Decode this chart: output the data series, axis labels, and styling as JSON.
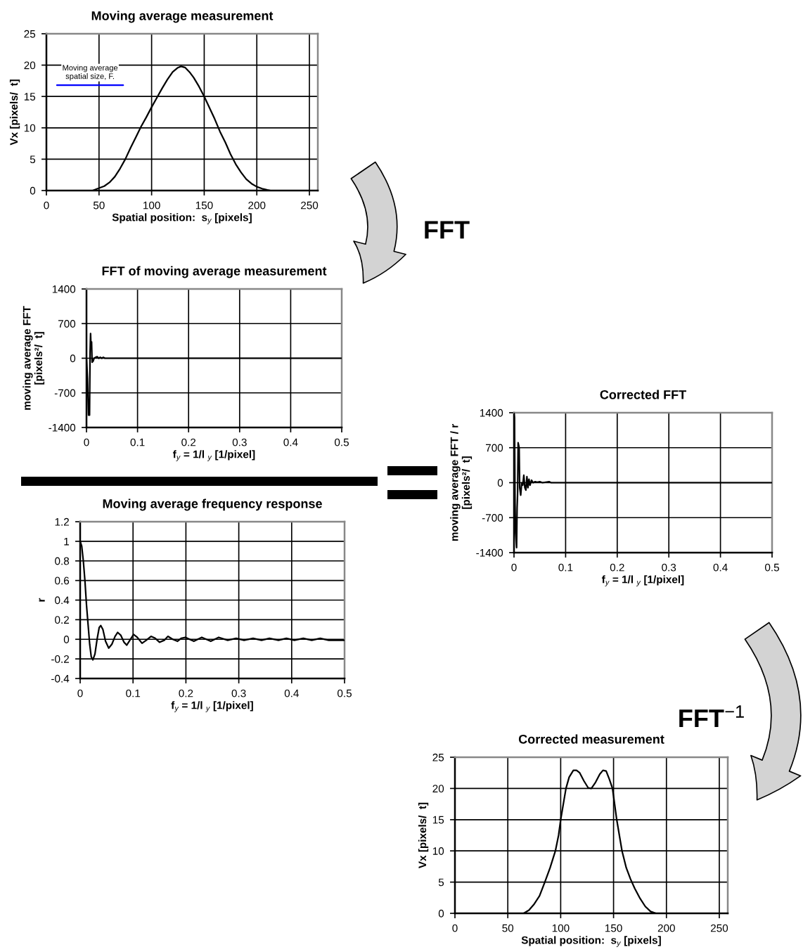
{
  "chart_data": [
    {
      "type": "line",
      "title": "Moving average measurement",
      "xlabel": "Spatial position:  s$_{y}$ [pixels]",
      "ylabel": "Vx [pixels/  t]",
      "xlim": [
        0,
        258
      ],
      "xticks": [
        0,
        50,
        100,
        150,
        200,
        250
      ],
      "ylim": [
        0,
        25
      ],
      "yticks": [
        0,
        5,
        10,
        15,
        20,
        25
      ],
      "grid": true,
      "series": [
        {
          "color": "#000000",
          "x": [
            44,
            50,
            55,
            60,
            65,
            70,
            75,
            80,
            85,
            90,
            95,
            100,
            105,
            110,
            115,
            120,
            125,
            128,
            132,
            136,
            140,
            145,
            150,
            155,
            160,
            165,
            170,
            175,
            180,
            185,
            190,
            195,
            200,
            205,
            210,
            213
          ],
          "values": [
            0,
            0.4,
            0.7,
            1.3,
            2.2,
            3.5,
            5.0,
            6.8,
            8.5,
            10.2,
            11.7,
            13.3,
            14.8,
            16.3,
            17.7,
            18.9,
            19.6,
            19.8,
            19.6,
            18.9,
            18.0,
            16.6,
            15.0,
            13.2,
            11.4,
            9.4,
            7.7,
            5.8,
            4.2,
            2.9,
            1.8,
            1.1,
            0.6,
            0.3,
            0.1,
            0
          ]
        },
        {
          "name": "Moving average\nspatial size, F.",
          "color": "#0000ff",
          "x": [
            10,
            73
          ],
          "values": [
            16.8,
            16.8
          ]
        }
      ]
    },
    {
      "type": "line",
      "title": "FFT of moving average measurement",
      "xlabel": "f$_{y}$ = 1/l $_{y}$ [1/pixel]",
      "ylabel": "moving average FFT\n[pixels²/  t]",
      "xlim": [
        0,
        0.5
      ],
      "xticks": [
        0,
        0.1,
        0.2,
        0.3,
        0.4,
        0.5
      ],
      "ylim": [
        -1400,
        1400
      ],
      "yticks": [
        -1400,
        -700,
        0,
        700,
        1400
      ],
      "grid": true,
      "annotations": [
        "FFT"
      ],
      "series": [
        {
          "color": "#000000",
          "x": [
            0,
            0.002,
            0.004,
            0.005,
            0.006,
            0.007,
            0.008,
            0.009,
            0.01,
            0.011,
            0.013,
            0.015,
            0.018,
            0.021,
            0.024,
            0.027,
            0.03,
            0.033,
            0.036,
            0.1,
            0.2,
            0.3,
            0.4,
            0.5
          ],
          "values": [
            0,
            -400,
            -1150,
            -1130,
            -1150,
            100,
            500,
            200,
            330,
            -80,
            -60,
            0,
            20,
            30,
            0,
            20,
            0,
            20,
            0,
            0,
            0,
            0,
            0,
            0
          ]
        }
      ]
    },
    {
      "type": "line",
      "title": "Moving average frequency response",
      "xlabel": "f$_{y}$ = 1/l $_{y}$ [1/pixel]",
      "ylabel": "r",
      "xlim": [
        0,
        0.5
      ],
      "xticks": [
        0,
        0.1,
        0.2,
        0.3,
        0.4,
        0.5
      ],
      "ylim": [
        -0.4,
        1.2
      ],
      "yticks": [
        -0.4,
        -0.2,
        0,
        0.2,
        0.4,
        0.6,
        0.8,
        1,
        1.2
      ],
      "grid": true,
      "series": [
        {
          "color": "#000000",
          "x": [
            0,
            0.003,
            0.006,
            0.009,
            0.012,
            0.015,
            0.018,
            0.021,
            0.024,
            0.028,
            0.032,
            0.036,
            0.039,
            0.043,
            0.048,
            0.054,
            0.06,
            0.066,
            0.071,
            0.077,
            0.083,
            0.088,
            0.094,
            0.101,
            0.108,
            0.117,
            0.125,
            0.134,
            0.142,
            0.15,
            0.159,
            0.166,
            0.175,
            0.184,
            0.191,
            0.199,
            0.207,
            0.215,
            0.23,
            0.247,
            0.262,
            0.279,
            0.295,
            0.31,
            0.327,
            0.343,
            0.358,
            0.375,
            0.39,
            0.405,
            0.422,
            0.438,
            0.454,
            0.47,
            0.5
          ],
          "values": [
            1.0,
            0.95,
            0.8,
            0.6,
            0.35,
            0.15,
            -0.05,
            -0.18,
            -0.21,
            -0.15,
            0.0,
            0.12,
            0.14,
            0.1,
            -0.02,
            -0.09,
            -0.05,
            0.03,
            0.07,
            0.04,
            -0.03,
            -0.06,
            -0.01,
            0.05,
            0.02,
            -0.04,
            -0.01,
            0.03,
            0.01,
            -0.03,
            -0.01,
            0.03,
            0.0,
            -0.02,
            0.01,
            0.02,
            0.0,
            -0.02,
            0.02,
            -0.02,
            0.02,
            -0.01,
            0.01,
            -0.01,
            0.01,
            -0.01,
            0.01,
            -0.01,
            0.01,
            -0.01,
            0.01,
            -0.01,
            0.01,
            -0.01,
            -0.01
          ]
        }
      ]
    },
    {
      "type": "line",
      "title": "Corrected FFT",
      "xlabel": "f$_{y}$ = 1/l $_{y}$ [1/pixel]",
      "ylabel": "moving average FFT / r\n[pixels²/  t]",
      "xlim": [
        0,
        0.5
      ],
      "xticks": [
        0,
        0.1,
        0.2,
        0.3,
        0.4,
        0.5
      ],
      "ylim": [
        -1400,
        1400
      ],
      "yticks": [
        -1400,
        -700,
        0,
        700,
        1400
      ],
      "grid": true,
      "series": [
        {
          "color": "#000000",
          "x": [
            0,
            0.001,
            0.002,
            0.003,
            0.005,
            0.006,
            0.007,
            0.008,
            0.009,
            0.01,
            0.011,
            0.013,
            0.015,
            0.017,
            0.019,
            0.021,
            0.023,
            0.025,
            0.027,
            0.029,
            0.031,
            0.034,
            0.037,
            0.041,
            0.045,
            0.05,
            0.055,
            0.068,
            0.072,
            0.1,
            0.2,
            0.3,
            0.4,
            0.5
          ],
          "values": [
            1400,
            1300,
            -400,
            -1000,
            -1300,
            -500,
            -200,
            800,
            750,
            700,
            -100,
            -250,
            0,
            -50,
            150,
            -100,
            -150,
            120,
            -100,
            70,
            -50,
            50,
            0,
            20,
            10,
            20,
            0,
            20,
            0,
            0,
            0,
            0,
            0,
            0
          ]
        }
      ]
    },
    {
      "type": "line",
      "title": "Corrected measurement",
      "xlabel": "Spatial position:  s$_{y}$ [pixels]",
      "ylabel": "Vx [pixels/  t]",
      "xlim": [
        0,
        258
      ],
      "xticks": [
        0,
        50,
        100,
        150,
        200,
        250
      ],
      "ylim": [
        0,
        25
      ],
      "yticks": [
        0,
        5,
        10,
        15,
        20,
        25
      ],
      "grid": true,
      "annotations": [
        "FFT$^{−1}$"
      ],
      "series": [
        {
          "color": "#000000",
          "x": [
            65,
            70,
            75,
            80,
            85,
            90,
            95,
            98,
            100,
            103,
            105,
            108,
            112,
            115,
            118,
            122,
            126,
            129,
            133,
            137,
            140,
            143,
            146,
            149,
            151,
            153,
            156,
            158,
            162,
            166,
            170,
            175,
            180,
            185,
            190
          ],
          "values": [
            0,
            0.5,
            1.5,
            2.8,
            5.0,
            7.3,
            10.0,
            12.5,
            15.0,
            18.0,
            20.0,
            21.8,
            22.9,
            22.9,
            22.5,
            21.2,
            20.1,
            20.0,
            21.0,
            22.3,
            22.9,
            22.8,
            21.5,
            20.0,
            17.5,
            15.0,
            12.0,
            10.0,
            7.3,
            5.5,
            4.0,
            2.4,
            1.1,
            0.3,
            0
          ]
        }
      ]
    }
  ]
}
